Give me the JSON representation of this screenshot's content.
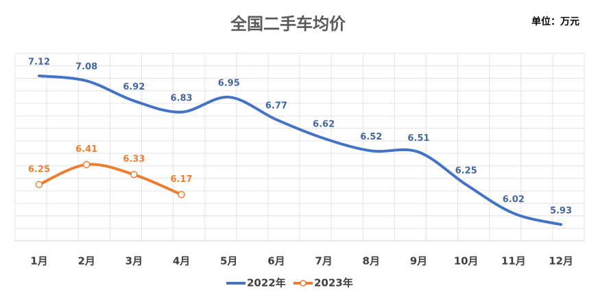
{
  "chart_data": {
    "type": "line",
    "title": "全国二手车均价",
    "unit": "单位：万元",
    "categories": [
      "1月",
      "2月",
      "3月",
      "4月",
      "5月",
      "6月",
      "7月",
      "8月",
      "9月",
      "10月",
      "11月",
      "12月"
    ],
    "series": [
      {
        "name": "2022年",
        "color": "#4472c4",
        "values": [
          7.12,
          7.08,
          6.92,
          6.83,
          6.95,
          6.77,
          6.62,
          6.52,
          6.51,
          6.25,
          6.02,
          5.93
        ]
      },
      {
        "name": "2023年",
        "color": "#ed7d31",
        "values": [
          6.25,
          6.41,
          6.33,
          6.17,
          null,
          null,
          null,
          null,
          null,
          null,
          null,
          null
        ]
      }
    ],
    "ylim": [
      5.8,
      7.3
    ],
    "grid": true,
    "smooth": true
  }
}
